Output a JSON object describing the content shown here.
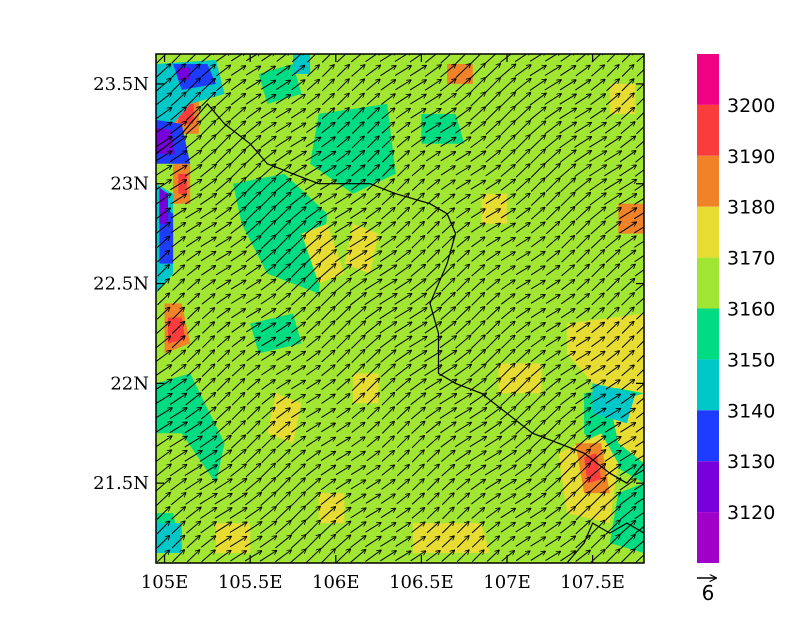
{
  "chart_data": {
    "type": "heatmap",
    "title": "",
    "xlabel": "",
    "ylabel": "",
    "xlim": [
      104.95,
      107.8
    ],
    "ylim": [
      21.1,
      23.65
    ],
    "x_ticks": [
      {
        "value": 105.0,
        "label": "105E"
      },
      {
        "value": 105.5,
        "label": "105.5E"
      },
      {
        "value": 106.0,
        "label": "106E"
      },
      {
        "value": 106.5,
        "label": "106.5E"
      },
      {
        "value": 107.0,
        "label": "107E"
      },
      {
        "value": 107.5,
        "label": "107.5E"
      }
    ],
    "y_ticks": [
      {
        "value": 21.5,
        "label": "21.5N"
      },
      {
        "value": 22.0,
        "label": "22N"
      },
      {
        "value": 22.5,
        "label": "22.5N"
      },
      {
        "value": 23.0,
        "label": "23N"
      },
      {
        "value": 23.5,
        "label": "23.5N"
      }
    ],
    "colorbar": {
      "levels": [
        3120,
        3130,
        3140,
        3150,
        3160,
        3170,
        3180,
        3190,
        3200
      ],
      "labels": [
        "3120",
        "3130",
        "3140",
        "3150",
        "3160",
        "3170",
        "3180",
        "3190",
        "3200"
      ],
      "colors": [
        "#a000c8",
        "#7800dc",
        "#1e3cff",
        "#00c8c8",
        "#00dc82",
        "#a0e632",
        "#e6dc32",
        "#f08228",
        "#fa3c3c",
        "#f00082"
      ]
    },
    "field_regions": [
      {
        "value": 3165,
        "description": "background",
        "poly": [
          [
            104.95,
            21.1
          ],
          [
            107.8,
            21.1
          ],
          [
            107.8,
            23.65
          ],
          [
            104.95,
            23.65
          ]
        ]
      },
      {
        "value": 3155,
        "poly": [
          [
            105.4,
            23.0
          ],
          [
            105.7,
            23.05
          ],
          [
            105.95,
            22.85
          ],
          [
            105.9,
            22.45
          ],
          [
            105.6,
            22.55
          ],
          [
            105.45,
            22.8
          ]
        ]
      },
      {
        "value": 3155,
        "poly": [
          [
            105.9,
            23.35
          ],
          [
            106.3,
            23.4
          ],
          [
            106.35,
            23.05
          ],
          [
            106.1,
            22.95
          ],
          [
            105.85,
            23.1
          ]
        ]
      },
      {
        "value": 3155,
        "poly": [
          [
            105.55,
            23.55
          ],
          [
            105.75,
            23.6
          ],
          [
            105.8,
            23.45
          ],
          [
            105.6,
            23.4
          ]
        ]
      },
      {
        "value": 3155,
        "poly": [
          [
            105.5,
            22.3
          ],
          [
            105.75,
            22.35
          ],
          [
            105.8,
            22.2
          ],
          [
            105.55,
            22.15
          ]
        ]
      },
      {
        "value": 3155,
        "poly": [
          [
            104.95,
            22.0
          ],
          [
            105.15,
            22.05
          ],
          [
            105.35,
            21.7
          ],
          [
            105.3,
            21.5
          ],
          [
            105.1,
            21.75
          ],
          [
            104.95,
            21.75
          ]
        ]
      },
      {
        "value": 3155,
        "poly": [
          [
            106.5,
            23.35
          ],
          [
            106.7,
            23.35
          ],
          [
            106.75,
            23.2
          ],
          [
            106.5,
            23.2
          ]
        ]
      },
      {
        "value": 3155,
        "poly": [
          [
            107.45,
            21.95
          ],
          [
            107.8,
            22.0
          ],
          [
            107.8,
            21.5
          ],
          [
            107.6,
            21.6
          ],
          [
            107.45,
            21.75
          ]
        ]
      },
      {
        "value": 3155,
        "poly": [
          [
            107.65,
            21.45
          ],
          [
            107.8,
            21.5
          ],
          [
            107.8,
            21.15
          ],
          [
            107.6,
            21.2
          ]
        ]
      },
      {
        "value": 3155,
        "poly": [
          [
            104.95,
            21.35
          ],
          [
            105.05,
            21.35
          ],
          [
            105.1,
            21.15
          ],
          [
            104.95,
            21.15
          ]
        ]
      },
      {
        "value": 3175,
        "poly": [
          [
            105.8,
            22.75
          ],
          [
            105.95,
            22.8
          ],
          [
            106.05,
            22.55
          ],
          [
            105.9,
            22.5
          ]
        ]
      },
      {
        "value": 3175,
        "poly": [
          [
            106.1,
            22.8
          ],
          [
            106.25,
            22.75
          ],
          [
            106.2,
            22.55
          ],
          [
            106.05,
            22.6
          ]
        ]
      },
      {
        "value": 3175,
        "poly": [
          [
            107.35,
            22.3
          ],
          [
            107.8,
            22.35
          ],
          [
            107.8,
            21.95
          ],
          [
            107.5,
            22.0
          ],
          [
            107.35,
            22.15
          ]
        ]
      },
      {
        "value": 3175,
        "poly": [
          [
            106.95,
            22.1
          ],
          [
            107.2,
            22.1
          ],
          [
            107.2,
            21.95
          ],
          [
            106.95,
            21.95
          ]
        ]
      },
      {
        "value": 3175,
        "poly": [
          [
            106.1,
            22.05
          ],
          [
            106.25,
            22.05
          ],
          [
            106.25,
            21.9
          ],
          [
            106.1,
            21.9
          ]
        ]
      },
      {
        "value": 3175,
        "poly": [
          [
            105.65,
            21.95
          ],
          [
            105.8,
            21.9
          ],
          [
            105.75,
            21.7
          ],
          [
            105.6,
            21.75
          ]
        ]
      },
      {
        "value": 3175,
        "poly": [
          [
            107.6,
            21.9
          ],
          [
            107.8,
            21.95
          ],
          [
            107.8,
            21.6
          ],
          [
            107.65,
            21.7
          ]
        ]
      },
      {
        "value": 3175,
        "poly": [
          [
            107.3,
            21.65
          ],
          [
            107.55,
            21.75
          ],
          [
            107.65,
            21.6
          ],
          [
            107.6,
            21.3
          ],
          [
            107.35,
            21.35
          ]
        ]
      },
      {
        "value": 3175,
        "poly": [
          [
            106.45,
            21.3
          ],
          [
            106.85,
            21.3
          ],
          [
            106.9,
            21.15
          ],
          [
            106.45,
            21.15
          ]
        ]
      },
      {
        "value": 3175,
        "poly": [
          [
            105.3,
            21.3
          ],
          [
            105.5,
            21.3
          ],
          [
            105.5,
            21.15
          ],
          [
            105.3,
            21.15
          ]
        ]
      },
      {
        "value": 3175,
        "poly": [
          [
            105.9,
            21.45
          ],
          [
            106.05,
            21.45
          ],
          [
            106.05,
            21.3
          ],
          [
            105.9,
            21.3
          ]
        ]
      },
      {
        "value": 3175,
        "poly": [
          [
            107.6,
            23.5
          ],
          [
            107.75,
            23.5
          ],
          [
            107.75,
            23.35
          ],
          [
            107.6,
            23.35
          ]
        ]
      },
      {
        "value": 3175,
        "poly": [
          [
            106.85,
            22.95
          ],
          [
            107.0,
            22.95
          ],
          [
            107.0,
            22.8
          ],
          [
            106.85,
            22.8
          ]
        ]
      },
      {
        "value": 3185,
        "poly": [
          [
            105.05,
            23.45
          ],
          [
            105.2,
            23.45
          ],
          [
            105.2,
            23.25
          ],
          [
            105.05,
            23.25
          ]
        ]
      },
      {
        "value": 3185,
        "poly": [
          [
            105.05,
            23.1
          ],
          [
            105.15,
            23.1
          ],
          [
            105.15,
            22.9
          ],
          [
            105.05,
            22.9
          ]
        ]
      },
      {
        "value": 3185,
        "poly": [
          [
            105.0,
            22.4
          ],
          [
            105.1,
            22.4
          ],
          [
            105.15,
            22.2
          ],
          [
            105.0,
            22.15
          ]
        ]
      },
      {
        "value": 3185,
        "poly": [
          [
            107.4,
            21.7
          ],
          [
            107.55,
            21.7
          ],
          [
            107.6,
            21.45
          ],
          [
            107.45,
            21.45
          ]
        ]
      },
      {
        "value": 3185,
        "poly": [
          [
            107.65,
            22.9
          ],
          [
            107.8,
            22.9
          ],
          [
            107.8,
            22.75
          ],
          [
            107.65,
            22.75
          ]
        ]
      },
      {
        "value": 3185,
        "poly": [
          [
            106.65,
            23.6
          ],
          [
            106.8,
            23.6
          ],
          [
            106.8,
            23.5
          ],
          [
            106.65,
            23.5
          ]
        ]
      },
      {
        "value": 3195,
        "poly": [
          [
            105.08,
            23.4
          ],
          [
            105.17,
            23.4
          ],
          [
            105.17,
            23.3
          ],
          [
            105.08,
            23.3
          ]
        ]
      },
      {
        "value": 3195,
        "poly": [
          [
            105.08,
            23.05
          ],
          [
            105.13,
            23.05
          ],
          [
            105.13,
            22.95
          ],
          [
            105.08,
            22.95
          ]
        ]
      },
      {
        "value": 3195,
        "poly": [
          [
            105.02,
            22.33
          ],
          [
            105.1,
            22.33
          ],
          [
            105.12,
            22.22
          ],
          [
            105.02,
            22.2
          ]
        ]
      },
      {
        "value": 3195,
        "poly": [
          [
            107.45,
            21.63
          ],
          [
            107.52,
            21.65
          ],
          [
            107.55,
            21.52
          ],
          [
            107.47,
            21.5
          ]
        ]
      },
      {
        "value": 3145,
        "poly": [
          [
            104.95,
            23.6
          ],
          [
            105.3,
            23.62
          ],
          [
            105.35,
            23.45
          ],
          [
            105.15,
            23.4
          ],
          [
            105.0,
            23.25
          ],
          [
            104.95,
            23.2
          ]
        ]
      },
      {
        "value": 3145,
        "poly": [
          [
            104.95,
            23.0
          ],
          [
            105.05,
            22.95
          ],
          [
            105.05,
            22.55
          ],
          [
            104.95,
            22.45
          ]
        ]
      },
      {
        "value": 3145,
        "poly": [
          [
            105.75,
            23.65
          ],
          [
            105.85,
            23.65
          ],
          [
            105.85,
            23.55
          ],
          [
            105.75,
            23.55
          ]
        ]
      },
      {
        "value": 3145,
        "poly": [
          [
            107.5,
            22.0
          ],
          [
            107.75,
            21.95
          ],
          [
            107.7,
            21.8
          ],
          [
            107.5,
            21.85
          ]
        ]
      },
      {
        "value": 3145,
        "poly": [
          [
            104.95,
            21.3
          ],
          [
            105.1,
            21.3
          ],
          [
            105.1,
            21.15
          ],
          [
            104.95,
            21.15
          ]
        ]
      },
      {
        "value": 3135,
        "poly": [
          [
            105.05,
            23.6
          ],
          [
            105.25,
            23.6
          ],
          [
            105.3,
            23.5
          ],
          [
            105.1,
            23.47
          ]
        ]
      },
      {
        "value": 3135,
        "poly": [
          [
            104.95,
            23.32
          ],
          [
            105.1,
            23.3
          ],
          [
            105.15,
            23.1
          ],
          [
            104.95,
            23.1
          ]
        ]
      },
      {
        "value": 3135,
        "poly": [
          [
            104.97,
            22.9
          ],
          [
            105.05,
            22.85
          ],
          [
            105.05,
            22.6
          ],
          [
            104.97,
            22.6
          ]
        ]
      },
      {
        "value": 3125,
        "poly": [
          [
            104.95,
            23.28
          ],
          [
            105.04,
            23.27
          ],
          [
            105.06,
            23.15
          ],
          [
            104.95,
            23.15
          ]
        ]
      },
      {
        "value": 3125,
        "poly": [
          [
            104.97,
            22.98
          ],
          [
            105.02,
            22.95
          ],
          [
            105.02,
            22.8
          ],
          [
            104.97,
            22.8
          ]
        ]
      },
      {
        "value": 3125,
        "poly": [
          [
            105.08,
            23.58
          ],
          [
            105.15,
            23.58
          ],
          [
            105.15,
            23.52
          ],
          [
            105.08,
            23.52
          ]
        ]
      }
    ],
    "wind_vectors": {
      "reference_vector": 6,
      "reference_label": "6",
      "grid_lon": [
        104.95,
        107.8,
        0.0875
      ],
      "grid_lat": [
        21.1,
        23.65,
        0.0715
      ],
      "mean_u": 4.8,
      "mean_v": 3.8
    },
    "border_line": [
      [
        104.95,
        23.15
      ],
      [
        105.1,
        23.25
      ],
      [
        105.25,
        23.4
      ],
      [
        105.35,
        23.3
      ],
      [
        105.5,
        23.2
      ],
      [
        105.6,
        23.1
      ],
      [
        105.75,
        23.05
      ],
      [
        105.9,
        23.0
      ],
      [
        106.05,
        23.0
      ],
      [
        106.2,
        23.0
      ],
      [
        106.35,
        22.95
      ],
      [
        106.55,
        22.9
      ],
      [
        106.65,
        22.85
      ],
      [
        106.7,
        22.75
      ],
      [
        106.65,
        22.6
      ],
      [
        106.55,
        22.4
      ],
      [
        106.6,
        22.25
      ],
      [
        106.6,
        22.05
      ],
      [
        106.7,
        22.0
      ],
      [
        106.85,
        21.95
      ],
      [
        107.0,
        21.85
      ],
      [
        107.15,
        21.75
      ],
      [
        107.3,
        21.7
      ],
      [
        107.45,
        21.65
      ],
      [
        107.6,
        21.55
      ],
      [
        107.7,
        21.5
      ],
      [
        107.8,
        21.6
      ]
    ],
    "coast_line": [
      [
        107.35,
        21.1
      ],
      [
        107.45,
        21.2
      ],
      [
        107.5,
        21.3
      ],
      [
        107.6,
        21.25
      ],
      [
        107.7,
        21.3
      ],
      [
        107.8,
        21.25
      ]
    ]
  }
}
